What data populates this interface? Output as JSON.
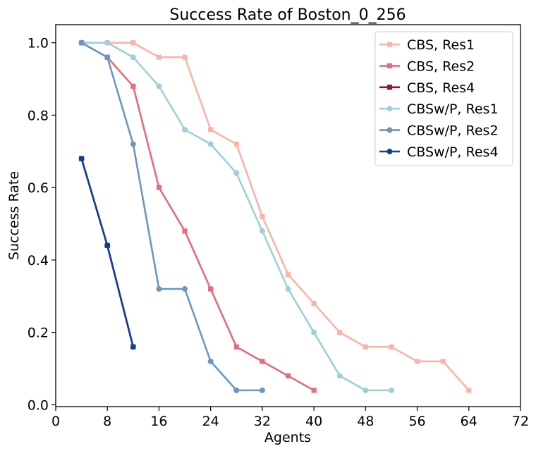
{
  "chart_data": {
    "type": "line",
    "title": "Success Rate of Boston_0_256",
    "xlabel": "Agents",
    "ylabel": "Success Rate",
    "xlim": [
      0,
      72
    ],
    "ylim": [
      -0.005,
      1.05
    ],
    "xticks": [
      0,
      8,
      16,
      24,
      32,
      40,
      48,
      56,
      64,
      72
    ],
    "yticks": [
      0.0,
      0.2,
      0.4,
      0.6,
      0.8,
      1.0
    ],
    "ytick_labels": [
      "0.0",
      "0.2",
      "0.4",
      "0.6",
      "0.8",
      "1.0"
    ],
    "grid": false,
    "legend_position": "top-right",
    "series": [
      {
        "name": "CBS, Res1",
        "color": "#f9b4a7",
        "marker": "square",
        "x": [
          4,
          8,
          12,
          16,
          20,
          24,
          28,
          32,
          36,
          40,
          44,
          48,
          52,
          56,
          60,
          64
        ],
        "y": [
          1.0,
          1.0,
          1.0,
          0.96,
          0.96,
          0.76,
          0.72,
          0.52,
          0.36,
          0.28,
          0.2,
          0.16,
          0.16,
          0.12,
          0.12,
          0.04
        ]
      },
      {
        "name": "CBS, Res2",
        "color": "#e46c7c",
        "marker": "square",
        "x": [
          4,
          8,
          12,
          16,
          20,
          24,
          28,
          32,
          36,
          40
        ],
        "y": [
          1.0,
          0.96,
          0.88,
          0.6,
          0.48,
          0.32,
          0.16,
          0.12,
          0.08,
          0.04
        ]
      },
      {
        "name": "CBS, Res4",
        "color": "#9a0f43",
        "marker": "square",
        "x": [
          4,
          8,
          12
        ],
        "y": [
          0.68,
          0.44,
          0.16
        ]
      },
      {
        "name": "CBSw/P, Res1",
        "color": "#9ed0d6",
        "marker": "circle",
        "x": [
          4,
          8,
          12,
          16,
          20,
          24,
          28,
          32,
          36,
          40,
          44,
          48,
          52
        ],
        "y": [
          1.0,
          1.0,
          0.96,
          0.88,
          0.76,
          0.72,
          0.64,
          0.48,
          0.32,
          0.2,
          0.08,
          0.04,
          0.04
        ]
      },
      {
        "name": "CBSw/P, Res2",
        "color": "#6b97bf",
        "marker": "circle",
        "x": [
          4,
          8,
          12,
          16,
          20,
          24,
          28,
          32
        ],
        "y": [
          1.0,
          0.96,
          0.72,
          0.32,
          0.32,
          0.12,
          0.04,
          0.04
        ]
      },
      {
        "name": "CBSw/P, Res4",
        "color": "#0f3f96",
        "marker": "circle",
        "x": [
          4,
          8,
          12
        ],
        "y": [
          0.68,
          0.44,
          0.16
        ]
      }
    ]
  }
}
